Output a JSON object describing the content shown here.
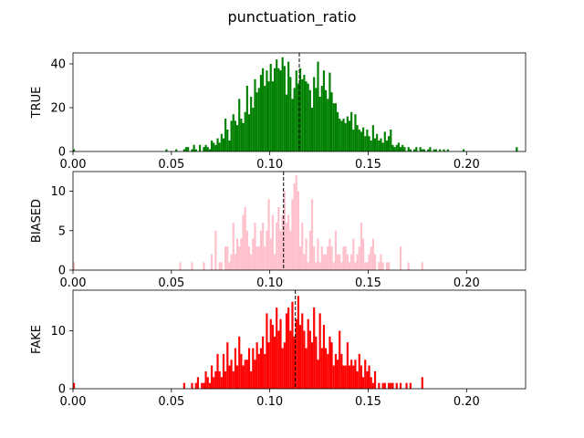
{
  "figure": {
    "title": "punctuation_ratio"
  },
  "chart_data": [
    {
      "type": "bar",
      "ylabel": "TRUE",
      "color": "#008000",
      "xlim": [
        0.0,
        0.23
      ],
      "ylim": [
        0,
        45
      ],
      "xticks": [
        "0.00",
        "0.05",
        "0.10",
        "0.15",
        "0.20"
      ],
      "xtick_values": [
        0.0,
        0.05,
        0.1,
        0.15,
        0.2
      ],
      "yticks": [
        "0",
        "20",
        "40"
      ],
      "ytick_values": [
        0,
        20,
        40
      ],
      "mean": 0.115,
      "bin_width": 0.001,
      "bins": [
        [
          0.0,
          1
        ],
        [
          0.047,
          1
        ],
        [
          0.052,
          1
        ],
        [
          0.056,
          1
        ],
        [
          0.057,
          2
        ],
        [
          0.058,
          2
        ],
        [
          0.06,
          1
        ],
        [
          0.061,
          3
        ],
        [
          0.062,
          1
        ],
        [
          0.064,
          3
        ],
        [
          0.066,
          2
        ],
        [
          0.067,
          3
        ],
        [
          0.068,
          2
        ],
        [
          0.069,
          1
        ],
        [
          0.07,
          5
        ],
        [
          0.071,
          4
        ],
        [
          0.072,
          3
        ],
        [
          0.073,
          6
        ],
        [
          0.074,
          4
        ],
        [
          0.075,
          8
        ],
        [
          0.076,
          6
        ],
        [
          0.077,
          15
        ],
        [
          0.078,
          10
        ],
        [
          0.079,
          5
        ],
        [
          0.08,
          14
        ],
        [
          0.081,
          17
        ],
        [
          0.082,
          14
        ],
        [
          0.083,
          12
        ],
        [
          0.084,
          24
        ],
        [
          0.085,
          15
        ],
        [
          0.086,
          13
        ],
        [
          0.087,
          18
        ],
        [
          0.088,
          30
        ],
        [
          0.089,
          17
        ],
        [
          0.09,
          25
        ],
        [
          0.091,
          20
        ],
        [
          0.092,
          33
        ],
        [
          0.093,
          27
        ],
        [
          0.094,
          29
        ],
        [
          0.095,
          35
        ],
        [
          0.096,
          38
        ],
        [
          0.097,
          30
        ],
        [
          0.098,
          37
        ],
        [
          0.099,
          32
        ],
        [
          0.1,
          40
        ],
        [
          0.101,
          32
        ],
        [
          0.102,
          38
        ],
        [
          0.103,
          42
        ],
        [
          0.104,
          38
        ],
        [
          0.105,
          37
        ],
        [
          0.106,
          43
        ],
        [
          0.107,
          39
        ],
        [
          0.108,
          26
        ],
        [
          0.109,
          41
        ],
        [
          0.11,
          34
        ],
        [
          0.111,
          24
        ],
        [
          0.112,
          29
        ],
        [
          0.113,
          37
        ],
        [
          0.114,
          31
        ],
        [
          0.115,
          38
        ],
        [
          0.116,
          33
        ],
        [
          0.117,
          35
        ],
        [
          0.118,
          32
        ],
        [
          0.119,
          31
        ],
        [
          0.12,
          28
        ],
        [
          0.121,
          20
        ],
        [
          0.122,
          34
        ],
        [
          0.123,
          29
        ],
        [
          0.124,
          41
        ],
        [
          0.125,
          25
        ],
        [
          0.126,
          30
        ],
        [
          0.127,
          37
        ],
        [
          0.128,
          28
        ],
        [
          0.129,
          24
        ],
        [
          0.13,
          36
        ],
        [
          0.131,
          27
        ],
        [
          0.132,
          22
        ],
        [
          0.133,
          22
        ],
        [
          0.134,
          18
        ],
        [
          0.135,
          15
        ],
        [
          0.136,
          14
        ],
        [
          0.137,
          15
        ],
        [
          0.138,
          13
        ],
        [
          0.139,
          16
        ],
        [
          0.14,
          14
        ],
        [
          0.141,
          18
        ],
        [
          0.142,
          10
        ],
        [
          0.143,
          17
        ],
        [
          0.144,
          12
        ],
        [
          0.145,
          10
        ],
        [
          0.146,
          9
        ],
        [
          0.147,
          11
        ],
        [
          0.148,
          7
        ],
        [
          0.149,
          10
        ],
        [
          0.15,
          7
        ],
        [
          0.151,
          5
        ],
        [
          0.152,
          12
        ],
        [
          0.153,
          6
        ],
        [
          0.154,
          8
        ],
        [
          0.155,
          5
        ],
        [
          0.156,
          6
        ],
        [
          0.157,
          4
        ],
        [
          0.158,
          9
        ],
        [
          0.159,
          5
        ],
        [
          0.16,
          7
        ],
        [
          0.161,
          10
        ],
        [
          0.162,
          3
        ],
        [
          0.163,
          2
        ],
        [
          0.164,
          3
        ],
        [
          0.165,
          4
        ],
        [
          0.166,
          2
        ],
        [
          0.167,
          3
        ],
        [
          0.168,
          2
        ],
        [
          0.17,
          2
        ],
        [
          0.171,
          1
        ],
        [
          0.173,
          1
        ],
        [
          0.174,
          2
        ],
        [
          0.176,
          2
        ],
        [
          0.177,
          1
        ],
        [
          0.178,
          1
        ],
        [
          0.18,
          1
        ],
        [
          0.181,
          2
        ],
        [
          0.183,
          1
        ],
        [
          0.184,
          1
        ],
        [
          0.186,
          1
        ],
        [
          0.188,
          1
        ],
        [
          0.19,
          1
        ],
        [
          0.198,
          1
        ],
        [
          0.225,
          2
        ]
      ]
    },
    {
      "type": "bar",
      "ylabel": "BIASED",
      "color": "#ffc0cb",
      "xlim": [
        0.0,
        0.23
      ],
      "ylim": [
        0,
        12.5
      ],
      "xticks": [
        "0.00",
        "0.05",
        "0.10",
        "0.15",
        "0.20"
      ],
      "xtick_values": [
        0.0,
        0.05,
        0.1,
        0.15,
        0.2
      ],
      "yticks": [
        "0",
        "5",
        "10"
      ],
      "ytick_values": [
        0,
        5,
        10
      ],
      "mean": 0.107,
      "bin_width": 0.001,
      "bins": [
        [
          0.0,
          1
        ],
        [
          0.054,
          1
        ],
        [
          0.06,
          1
        ],
        [
          0.066,
          1
        ],
        [
          0.07,
          2
        ],
        [
          0.072,
          5
        ],
        [
          0.074,
          1
        ],
        [
          0.075,
          1
        ],
        [
          0.077,
          3
        ],
        [
          0.078,
          3
        ],
        [
          0.079,
          1
        ],
        [
          0.08,
          2
        ],
        [
          0.081,
          6
        ],
        [
          0.082,
          2
        ],
        [
          0.083,
          4
        ],
        [
          0.084,
          3
        ],
        [
          0.085,
          4
        ],
        [
          0.086,
          7
        ],
        [
          0.087,
          8
        ],
        [
          0.088,
          5
        ],
        [
          0.089,
          3
        ],
        [
          0.09,
          2
        ],
        [
          0.091,
          4
        ],
        [
          0.092,
          6
        ],
        [
          0.093,
          3
        ],
        [
          0.094,
          3
        ],
        [
          0.095,
          5
        ],
        [
          0.096,
          6
        ],
        [
          0.097,
          3
        ],
        [
          0.098,
          5
        ],
        [
          0.099,
          9
        ],
        [
          0.1,
          4
        ],
        [
          0.101,
          7
        ],
        [
          0.102,
          2
        ],
        [
          0.103,
          6
        ],
        [
          0.104,
          8
        ],
        [
          0.105,
          5
        ],
        [
          0.106,
          7
        ],
        [
          0.107,
          10
        ],
        [
          0.108,
          6
        ],
        [
          0.109,
          7
        ],
        [
          0.11,
          5
        ],
        [
          0.111,
          9
        ],
        [
          0.112,
          11
        ],
        [
          0.113,
          12
        ],
        [
          0.114,
          10
        ],
        [
          0.115,
          3
        ],
        [
          0.116,
          6
        ],
        [
          0.117,
          2
        ],
        [
          0.118,
          4
        ],
        [
          0.119,
          1
        ],
        [
          0.12,
          5
        ],
        [
          0.121,
          9
        ],
        [
          0.122,
          3
        ],
        [
          0.123,
          1
        ],
        [
          0.124,
          4
        ],
        [
          0.125,
          1
        ],
        [
          0.126,
          3
        ],
        [
          0.127,
          2
        ],
        [
          0.128,
          2
        ],
        [
          0.129,
          3
        ],
        [
          0.13,
          4
        ],
        [
          0.131,
          3
        ],
        [
          0.132,
          1
        ],
        [
          0.133,
          5
        ],
        [
          0.134,
          2
        ],
        [
          0.135,
          2
        ],
        [
          0.136,
          1
        ],
        [
          0.137,
          3
        ],
        [
          0.138,
          3
        ],
        [
          0.139,
          2
        ],
        [
          0.14,
          1
        ],
        [
          0.141,
          2
        ],
        [
          0.142,
          4
        ],
        [
          0.143,
          1
        ],
        [
          0.144,
          2
        ],
        [
          0.145,
          3
        ],
        [
          0.146,
          6
        ],
        [
          0.147,
          4
        ],
        [
          0.148,
          1
        ],
        [
          0.149,
          1
        ],
        [
          0.15,
          2
        ],
        [
          0.151,
          3
        ],
        [
          0.152,
          4
        ],
        [
          0.153,
          2
        ],
        [
          0.155,
          1
        ],
        [
          0.156,
          2
        ],
        [
          0.157,
          1
        ],
        [
          0.159,
          1
        ],
        [
          0.16,
          1
        ],
        [
          0.166,
          3
        ],
        [
          0.17,
          1
        ],
        [
          0.177,
          1
        ]
      ]
    },
    {
      "type": "bar",
      "ylabel": "FAKE",
      "color": "#ff0000",
      "xlim": [
        0.0,
        0.23
      ],
      "ylim": [
        0,
        17
      ],
      "xticks": [
        "0.00",
        "0.05",
        "0.10",
        "0.15",
        "0.20"
      ],
      "xtick_values": [
        0.0,
        0.05,
        0.1,
        0.15,
        0.2
      ],
      "yticks": [
        "0",
        "10"
      ],
      "ytick_values": [
        0,
        10
      ],
      "mean": 0.113,
      "bin_width": 0.001,
      "bins": [
        [
          0.0,
          1
        ],
        [
          0.056,
          1
        ],
        [
          0.06,
          1
        ],
        [
          0.062,
          1
        ],
        [
          0.063,
          2
        ],
        [
          0.065,
          1
        ],
        [
          0.066,
          1
        ],
        [
          0.067,
          3
        ],
        [
          0.068,
          2
        ],
        [
          0.069,
          1
        ],
        [
          0.07,
          4
        ],
        [
          0.071,
          2
        ],
        [
          0.072,
          3
        ],
        [
          0.073,
          6
        ],
        [
          0.074,
          3
        ],
        [
          0.075,
          2
        ],
        [
          0.076,
          6
        ],
        [
          0.077,
          3
        ],
        [
          0.078,
          8
        ],
        [
          0.079,
          4
        ],
        [
          0.08,
          5
        ],
        [
          0.081,
          3
        ],
        [
          0.082,
          7
        ],
        [
          0.083,
          4
        ],
        [
          0.084,
          9
        ],
        [
          0.085,
          6
        ],
        [
          0.086,
          4
        ],
        [
          0.087,
          5
        ],
        [
          0.088,
          5
        ],
        [
          0.089,
          7
        ],
        [
          0.09,
          3
        ],
        [
          0.091,
          7
        ],
        [
          0.092,
          5
        ],
        [
          0.093,
          8
        ],
        [
          0.094,
          6
        ],
        [
          0.095,
          7
        ],
        [
          0.096,
          9
        ],
        [
          0.097,
          6
        ],
        [
          0.098,
          13
        ],
        [
          0.099,
          8
        ],
        [
          0.1,
          12
        ],
        [
          0.101,
          11
        ],
        [
          0.102,
          9
        ],
        [
          0.103,
          14
        ],
        [
          0.104,
          10
        ],
        [
          0.105,
          12
        ],
        [
          0.106,
          7
        ],
        [
          0.107,
          8
        ],
        [
          0.108,
          13
        ],
        [
          0.109,
          14
        ],
        [
          0.11,
          10
        ],
        [
          0.111,
          15
        ],
        [
          0.112,
          9
        ],
        [
          0.113,
          12
        ],
        [
          0.114,
          16
        ],
        [
          0.115,
          11
        ],
        [
          0.116,
          13
        ],
        [
          0.117,
          10
        ],
        [
          0.118,
          7
        ],
        [
          0.119,
          12
        ],
        [
          0.12,
          10
        ],
        [
          0.121,
          8
        ],
        [
          0.122,
          14
        ],
        [
          0.123,
          9
        ],
        [
          0.124,
          5
        ],
        [
          0.125,
          13
        ],
        [
          0.126,
          7
        ],
        [
          0.127,
          11
        ],
        [
          0.128,
          7
        ],
        [
          0.129,
          6
        ],
        [
          0.13,
          9
        ],
        [
          0.131,
          8
        ],
        [
          0.132,
          4
        ],
        [
          0.133,
          6
        ],
        [
          0.134,
          5
        ],
        [
          0.135,
          10
        ],
        [
          0.136,
          6
        ],
        [
          0.137,
          4
        ],
        [
          0.138,
          4
        ],
        [
          0.139,
          8
        ],
        [
          0.14,
          4
        ],
        [
          0.141,
          5
        ],
        [
          0.142,
          4
        ],
        [
          0.143,
          5
        ],
        [
          0.144,
          3
        ],
        [
          0.145,
          6
        ],
        [
          0.146,
          4
        ],
        [
          0.147,
          2
        ],
        [
          0.148,
          5
        ],
        [
          0.149,
          3
        ],
        [
          0.15,
          4
        ],
        [
          0.151,
          2
        ],
        [
          0.152,
          1
        ],
        [
          0.153,
          3
        ],
        [
          0.155,
          1
        ],
        [
          0.157,
          1
        ],
        [
          0.158,
          1
        ],
        [
          0.16,
          1
        ],
        [
          0.161,
          1
        ],
        [
          0.162,
          1
        ],
        [
          0.164,
          1
        ],
        [
          0.166,
          1
        ],
        [
          0.169,
          1
        ],
        [
          0.171,
          1
        ],
        [
          0.177,
          2
        ]
      ]
    }
  ]
}
